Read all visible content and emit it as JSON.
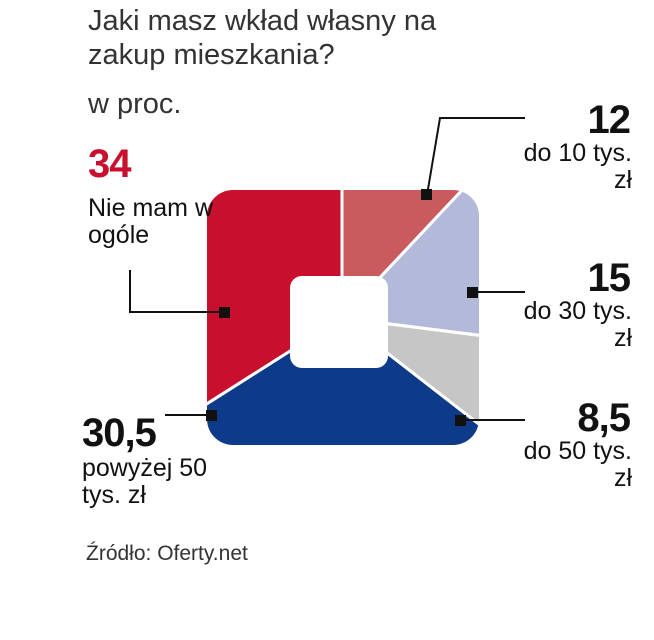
{
  "chart_data": {
    "type": "pie",
    "title": "Jaki masz wkład własny na zakup mieszkania?",
    "subtitle": "w proc.",
    "source": "Źródło: Oferty.net",
    "categories": [
      "do 10 tys. zł",
      "do 30 tys. zł",
      "do 50 tys. zł",
      "powyżej 50 tys. zł",
      "Nie mam w ogóle"
    ],
    "values": [
      12,
      15,
      8.5,
      30.5,
      34
    ],
    "value_labels": [
      "12",
      "15",
      "8,5",
      "30,5",
      "34"
    ],
    "colors": [
      "#c95a5e",
      "#b3b9d8",
      "#c6c6c6",
      "#0e3a8a",
      "#c8102e"
    ]
  }
}
